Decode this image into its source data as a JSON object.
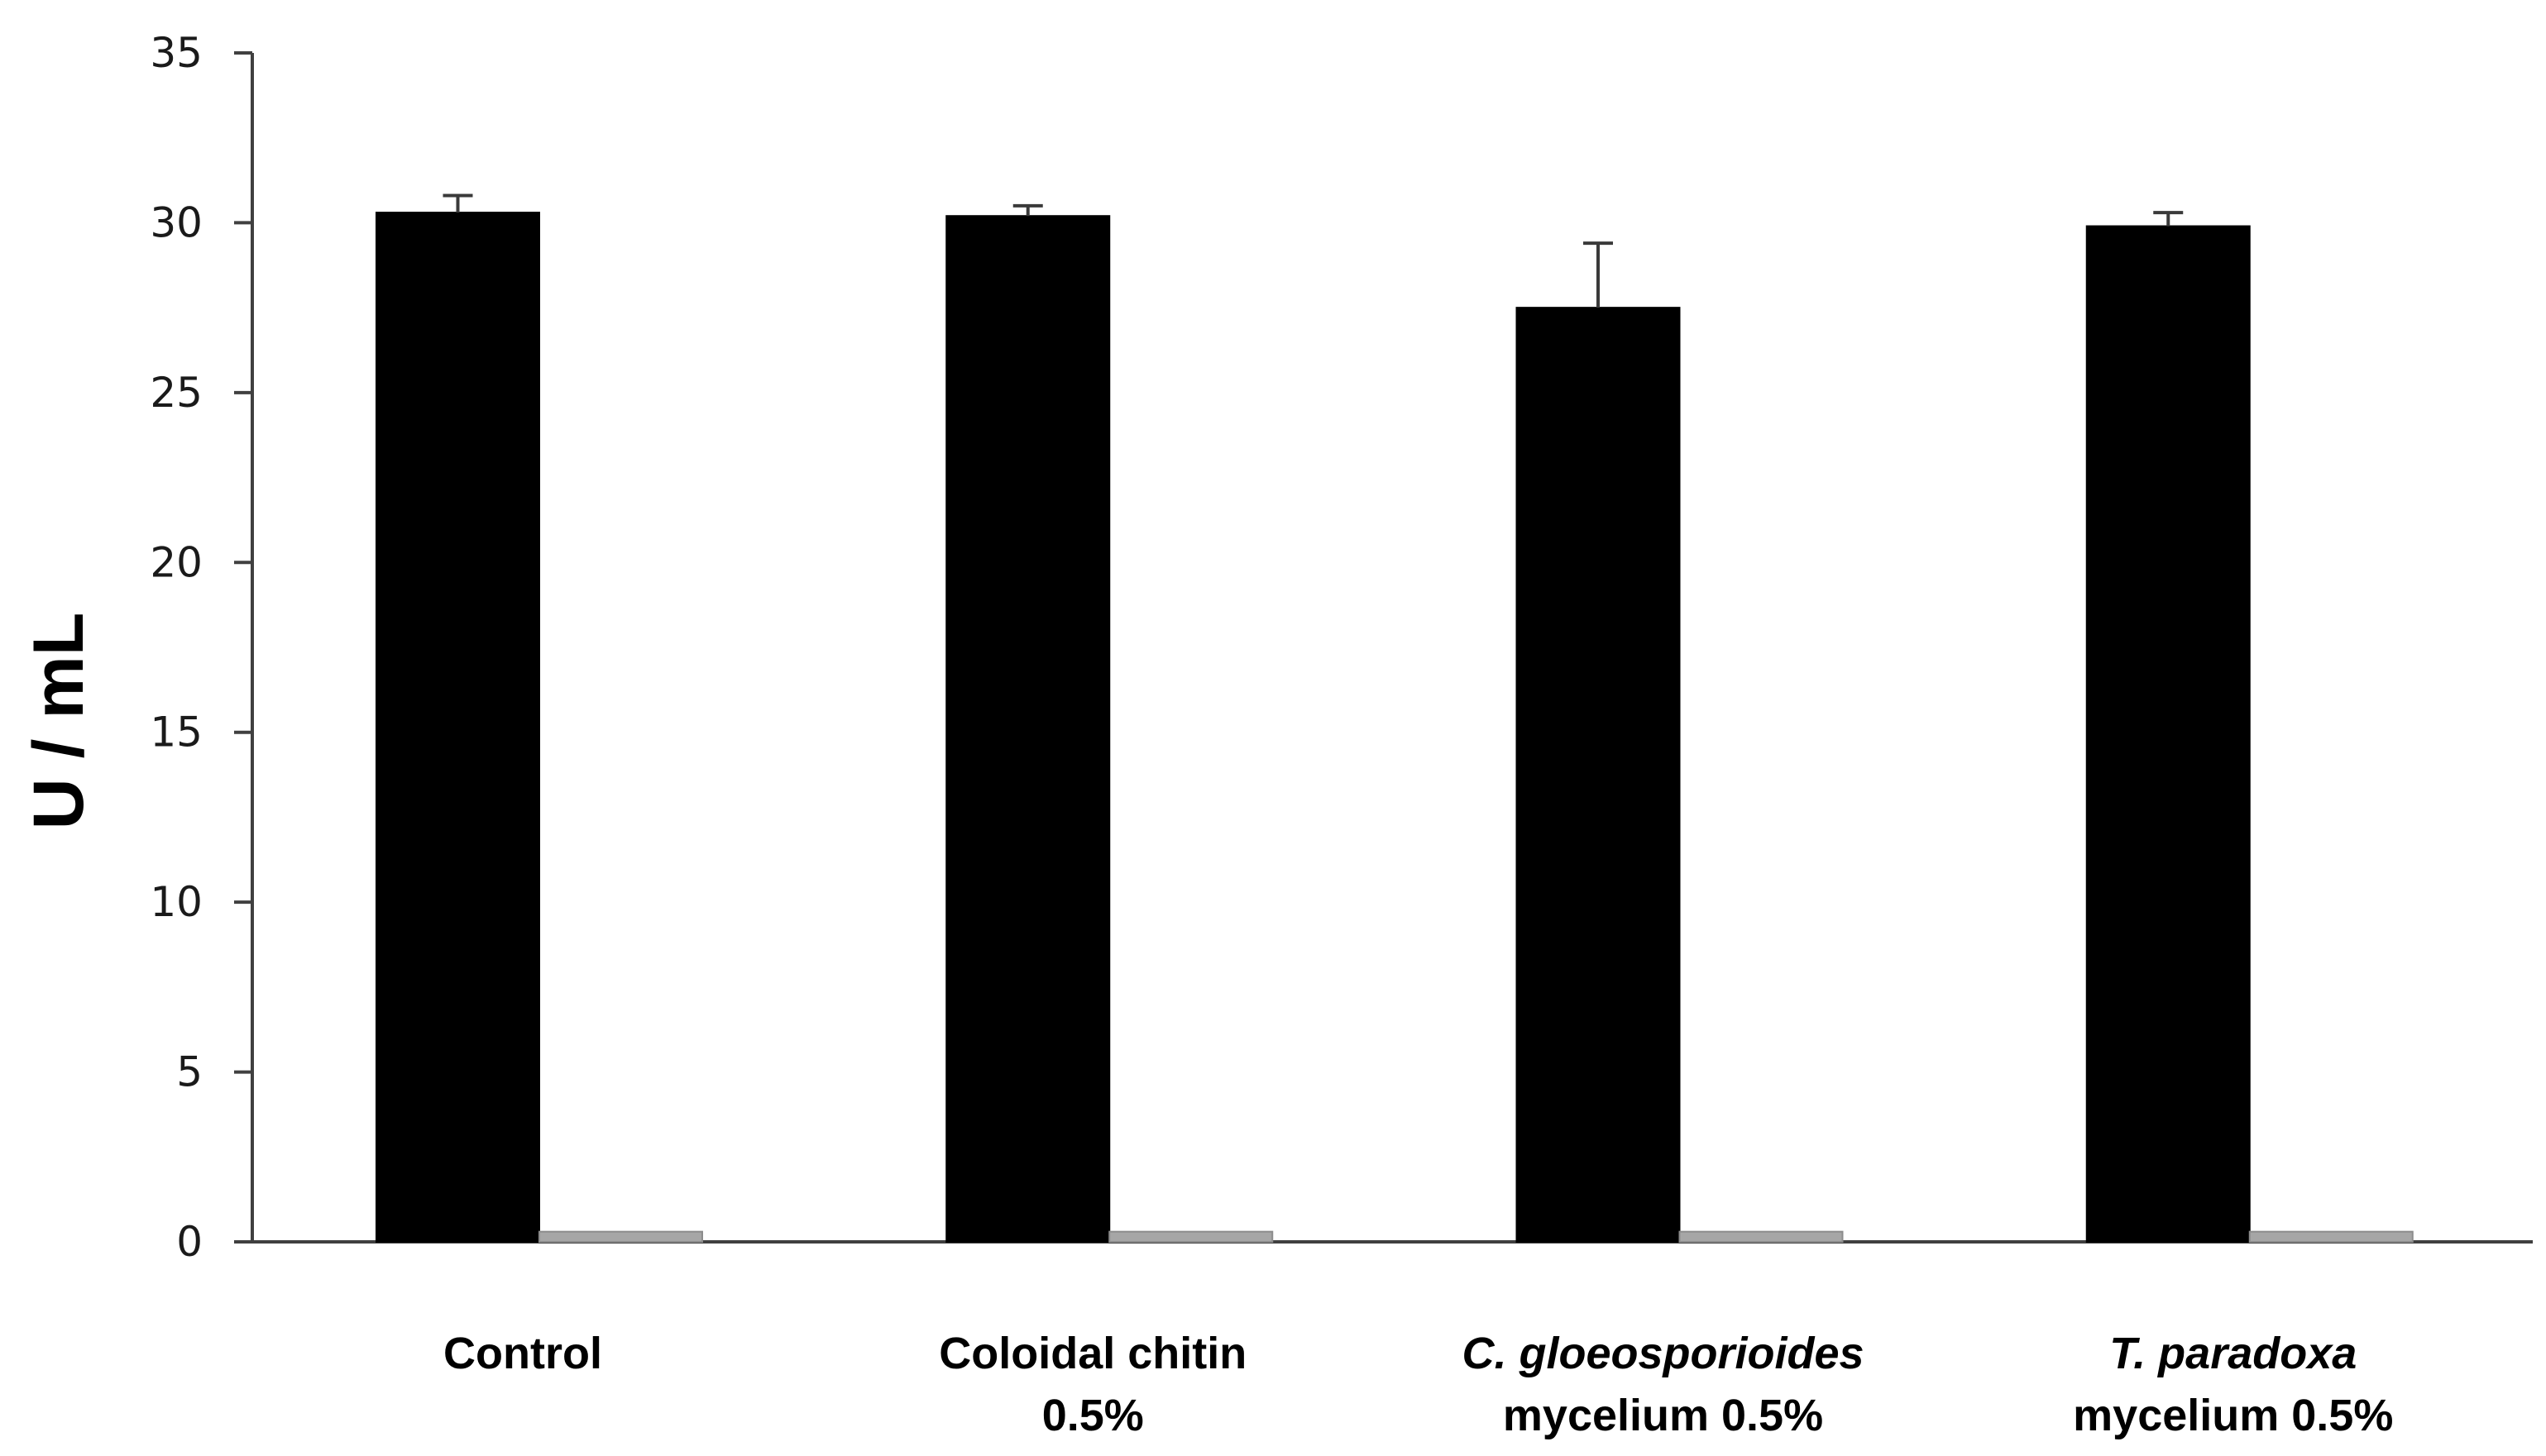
{
  "chart_data": {
    "type": "bar",
    "title": "",
    "xlabel": "",
    "ylabel": "U / mL",
    "ylim": [
      0,
      35
    ],
    "yticks": [
      0,
      5,
      10,
      15,
      20,
      25,
      30,
      35
    ],
    "grid": false,
    "legend": "none",
    "categories": [
      {
        "lines": [
          {
            "text": "Control",
            "italic": false
          }
        ]
      },
      {
        "lines": [
          {
            "text": "Coloidal chitin",
            "italic": false
          },
          {
            "text": "0.5%",
            "italic": false
          }
        ]
      },
      {
        "lines": [
          {
            "text": "C. gloeosporioides",
            "italic": true
          },
          {
            "text": "mycelium 0.5%",
            "italic": false
          }
        ]
      },
      {
        "lines": [
          {
            "text": "T. paradoxa",
            "italic": true
          },
          {
            "text": "mycelium 0.5%",
            "italic": false
          }
        ]
      }
    ],
    "series": [
      {
        "color": "#000000",
        "values": [
          30.3,
          30.2,
          27.5,
          29.9
        ],
        "errors": [
          0.5,
          0.3,
          1.9,
          0.4
        ]
      },
      {
        "color": "#a6a6a6",
        "values": [
          0.3,
          0.3,
          0.3,
          0.3
        ],
        "errors": [
          0,
          0,
          0,
          0
        ]
      }
    ]
  }
}
